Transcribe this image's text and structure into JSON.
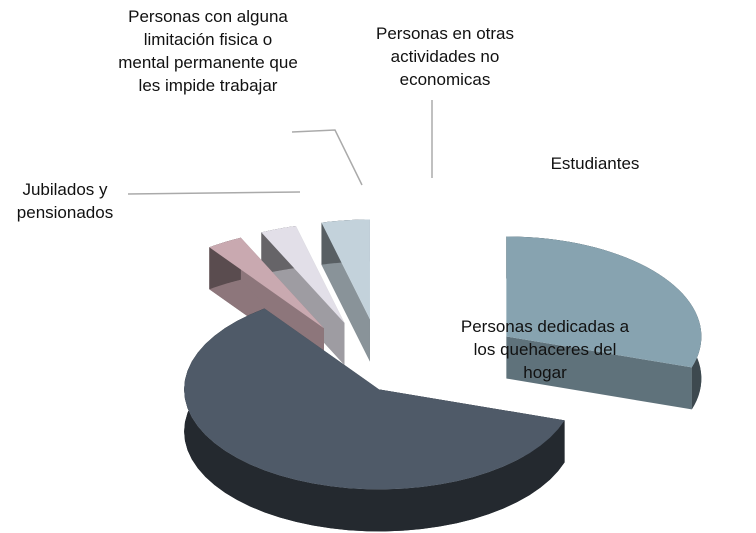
{
  "chart_data": {
    "type": "pie",
    "categories": [
      "Estudiantes",
      "Personas dedicadas a los quehaceres del hogar",
      "Jubilados y pensionados",
      "Personas con alguna limitación fisica o mental permanente que les impide trabajar",
      "Personas en otras actividades no economicas"
    ],
    "values": [
      30,
      60,
      3,
      3,
      4
    ],
    "colors": [
      "#87a3b0",
      "#4f5a68",
      "#c9a9b0",
      "#e2dfe8",
      "#c3d2db"
    ]
  }
}
